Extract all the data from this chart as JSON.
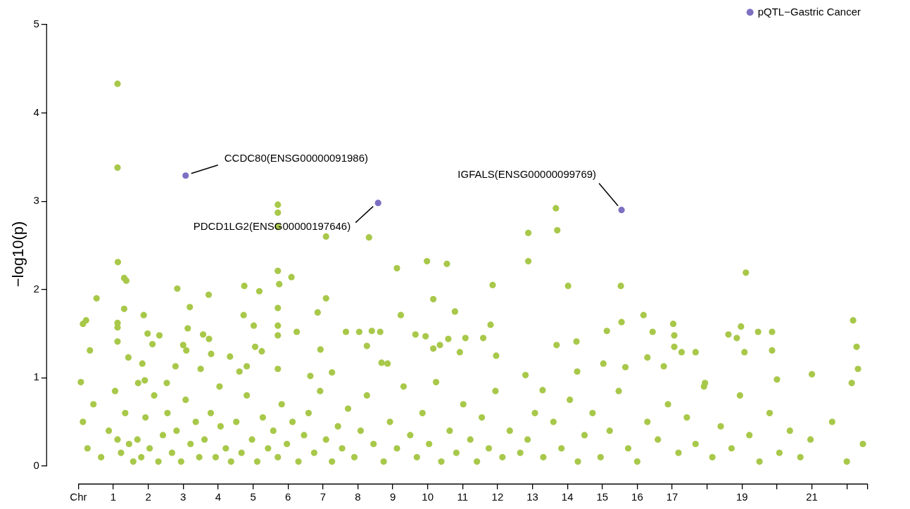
{
  "chart_data": {
    "type": "scatter",
    "ylabel": "−log10(p)",
    "xlim": [
      -0.9,
      22.6
    ],
    "ylim": [
      -0.2,
      5
    ],
    "xticks": [
      {
        "value": 0,
        "label": "Chr"
      },
      1,
      2,
      3,
      4,
      5,
      6,
      7,
      8,
      9,
      10,
      11,
      12,
      13,
      14,
      15,
      16,
      17,
      {
        "value": 18,
        "label": null
      },
      19,
      {
        "value": 20,
        "label": null
      },
      21,
      {
        "value": 22,
        "label": null
      },
      {
        "value": 22.6,
        "label": null
      }
    ],
    "yticks": [
      0,
      1,
      2,
      3,
      4,
      5
    ],
    "grid": false,
    "legend": "top right",
    "marker": "circle",
    "series": [
      {
        "color": "#a8c84a",
        "x": [
          1.12,
          1.12,
          1.13,
          1.31,
          1.37,
          0.52,
          1.31,
          1.12,
          1.12,
          0.22,
          0.13,
          0.33,
          1.43,
          1.12,
          0.07,
          1.87,
          1.98,
          2.32,
          2.12,
          1.83,
          1.71,
          1.9,
          2.83,
          3.19,
          3.13,
          3.0,
          3.09,
          2.78,
          2.53,
          3.73,
          3.57,
          3.74,
          3.8,
          3.5,
          4.04,
          4.75,
          5.18,
          4.73,
          5.02,
          5.06,
          5.25,
          4.34,
          4.82,
          4.61,
          5.71,
          5.71,
          5.71,
          5.71,
          6.1,
          5.75,
          5.71,
          5.71,
          5.71,
          6.25,
          5.71,
          7.09,
          7.09,
          6.85,
          6.93,
          7.26,
          6.64,
          8.32,
          8.04,
          8.4,
          8.26,
          8.64,
          7.66,
          9.12,
          9.23,
          9.65,
          8.85,
          8.68,
          9.98,
          10.16,
          9.94,
          10.35,
          10.16,
          10.55,
          10.78,
          11.08,
          10.59,
          10.92,
          11.86,
          11.8,
          11.96,
          11.59,
          12.88,
          12.88,
          12.8,
          13.29,
          13.67,
          13.71,
          14.02,
          13.69,
          14.26,
          14.28,
          15.13,
          15.53,
          15.55,
          15.66,
          15.03,
          16.18,
          16.44,
          17.06,
          16.29,
          17.03,
          17.06,
          17.27,
          17.67,
          16.76,
          17.94,
          19.11,
          18.97,
          18.61,
          18.85,
          19.07,
          19.46,
          19.86,
          19.86,
          20.0,
          21.0,
          22.18,
          22.28,
          22.32,
          22.14,
          0.13,
          0.26,
          0.43,
          0.65,
          0.87,
          1.05,
          1.12,
          1.22,
          1.34,
          1.45,
          1.57,
          1.69,
          1.8,
          1.92,
          2.04,
          2.17,
          2.29,
          2.42,
          2.55,
          2.68,
          2.81,
          2.94,
          3.07,
          3.21,
          3.36,
          3.46,
          3.61,
          3.79,
          3.93,
          4.07,
          4.22,
          4.37,
          4.52,
          4.67,
          4.82,
          4.97,
          5.12,
          5.28,
          5.43,
          5.58,
          5.71,
          5.82,
          5.97,
          6.13,
          6.3,
          6.46,
          6.59,
          6.75,
          6.92,
          7.09,
          7.26,
          7.43,
          7.55,
          7.72,
          7.9,
          8.08,
          8.26,
          8.45,
          8.74,
          8.92,
          9.12,
          9.31,
          9.5,
          9.69,
          9.85,
          10.04,
          10.24,
          10.39,
          10.63,
          10.82,
          11.02,
          11.22,
          11.41,
          11.55,
          11.75,
          11.94,
          12.14,
          12.35,
          12.65,
          12.86,
          13.07,
          13.31,
          13.6,
          13.83,
          14.07,
          14.3,
          14.49,
          14.72,
          14.95,
          15.21,
          15.47,
          15.74,
          16.0,
          16.29,
          16.59,
          16.88,
          17.18,
          17.42,
          17.67,
          17.91,
          18.15,
          18.39,
          18.7,
          18.94,
          19.21,
          19.5,
          19.79,
          20.07,
          20.37,
          20.67,
          20.96,
          21.58,
          22.0,
          22.46
        ],
        "values": [
          4.33,
          3.38,
          2.31,
          2.13,
          2.1,
          1.9,
          1.78,
          1.62,
          1.57,
          1.65,
          1.61,
          1.31,
          1.23,
          1.41,
          0.95,
          1.71,
          1.5,
          1.48,
          1.38,
          1.16,
          0.94,
          0.97,
          2.01,
          1.8,
          1.56,
          1.37,
          1.31,
          1.13,
          0.94,
          1.94,
          1.49,
          1.44,
          1.27,
          1.1,
          0.9,
          2.04,
          1.98,
          1.71,
          1.59,
          1.35,
          1.3,
          1.24,
          1.13,
          1.07,
          2.96,
          2.87,
          2.71,
          2.21,
          2.14,
          2.06,
          1.79,
          1.59,
          1.48,
          1.52,
          1.1,
          2.6,
          1.9,
          1.74,
          1.32,
          1.06,
          1.02,
          2.59,
          1.52,
          1.53,
          1.36,
          1.52,
          1.52,
          2.24,
          1.71,
          1.49,
          1.16,
          1.17,
          2.32,
          1.89,
          1.47,
          1.37,
          1.33,
          2.29,
          1.75,
          1.45,
          1.44,
          1.29,
          2.05,
          1.6,
          1.25,
          1.45,
          2.32,
          2.64,
          1.03,
          0.86,
          2.92,
          2.67,
          2.04,
          1.37,
          1.41,
          1.07,
          1.53,
          2.04,
          1.63,
          1.12,
          1.16,
          1.71,
          1.52,
          1.35,
          1.23,
          1.61,
          1.48,
          1.29,
          1.29,
          1.13,
          0.94,
          2.19,
          1.58,
          1.49,
          1.45,
          1.29,
          1.52,
          1.52,
          1.31,
          0.98,
          1.04,
          1.65,
          1.35,
          1.1,
          0.94,
          0.5,
          0.2,
          0.7,
          0.1,
          0.4,
          0.85,
          0.3,
          0.15,
          0.6,
          0.25,
          0.05,
          0.3,
          0.1,
          0.55,
          0.2,
          0.8,
          0.05,
          0.35,
          0.6,
          0.15,
          0.4,
          0.05,
          0.75,
          0.25,
          0.5,
          0.1,
          0.3,
          0.6,
          0.1,
          0.45,
          0.2,
          0.05,
          0.5,
          0.15,
          0.8,
          0.3,
          0.05,
          0.55,
          0.2,
          0.4,
          0.1,
          0.7,
          0.25,
          0.5,
          0.05,
          0.35,
          0.6,
          0.15,
          0.85,
          0.3,
          0.05,
          0.45,
          0.2,
          0.65,
          0.1,
          0.4,
          0.8,
          0.25,
          0.05,
          0.5,
          0.2,
          0.9,
          0.35,
          0.1,
          0.6,
          0.25,
          0.95,
          0.05,
          0.4,
          0.15,
          0.7,
          0.3,
          0.05,
          0.55,
          0.2,
          0.85,
          0.1,
          0.4,
          0.15,
          0.3,
          0.6,
          0.1,
          0.5,
          0.2,
          0.75,
          0.05,
          0.35,
          0.6,
          0.1,
          0.4,
          0.85,
          0.2,
          0.05,
          0.5,
          0.3,
          0.7,
          0.15,
          0.55,
          0.25,
          0.9,
          0.1,
          0.45,
          0.2,
          0.8,
          0.35,
          0.05,
          0.6,
          0.15,
          0.4,
          0.1,
          0.3,
          0.5,
          0.05,
          0.25
        ]
      },
      {
        "name": "pQTL−Gastric Cancer",
        "color": "#7d70c2",
        "x": [
          3.07,
          8.58,
          15.55
        ],
        "values": [
          3.29,
          2.98,
          2.9
        ]
      }
    ],
    "annotations": [
      {
        "text": "CCDC80(ENSG00000091986)",
        "x": 3.07,
        "y": 3.29
      },
      {
        "text": "PDCD1LG2(ENSG00000197646)",
        "x": 8.58,
        "y": 2.98
      },
      {
        "text": "IGFALS(ENSG00000099769)",
        "x": 15.55,
        "y": 2.9
      }
    ]
  }
}
